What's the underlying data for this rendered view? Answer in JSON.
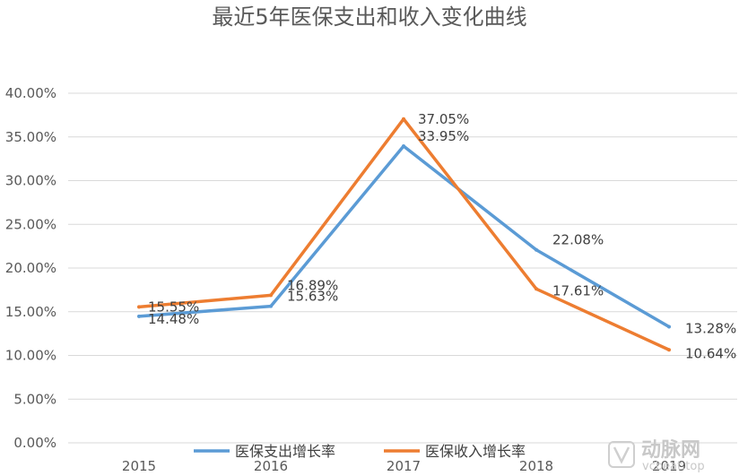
{
  "chart_data": {
    "type": "line",
    "title": "最近5年医保支出和收入变化曲线",
    "xlabel": "",
    "ylabel": "",
    "categories": [
      "2015",
      "2016",
      "2017",
      "2018",
      "2019"
    ],
    "ylim": [
      0,
      40
    ],
    "yticks": [
      "0.00%",
      "5.00%",
      "10.00%",
      "15.00%",
      "20.00%",
      "25.00%",
      "30.00%",
      "35.00%",
      "40.00%"
    ],
    "grid": true,
    "legend": "bottom",
    "series": [
      {
        "name": "医保支出增长率",
        "color": "#5b9bd5",
        "values": [
          14.48,
          15.63,
          33.95,
          22.08,
          13.28
        ],
        "labels": [
          "14.48%",
          "15.63%",
          "33.95%",
          "22.08%",
          "13.28%"
        ]
      },
      {
        "name": "医保收入增长率",
        "color": "#ed7d31",
        "values": [
          15.55,
          16.89,
          37.05,
          17.61,
          10.64
        ],
        "labels": [
          "15.55%",
          "16.89%",
          "37.05%",
          "17.61%",
          "10.64%"
        ]
      }
    ]
  },
  "watermark": {
    "text": "动脉网",
    "sub": "vcbeat.top",
    "icon": "vb-logo-icon"
  }
}
